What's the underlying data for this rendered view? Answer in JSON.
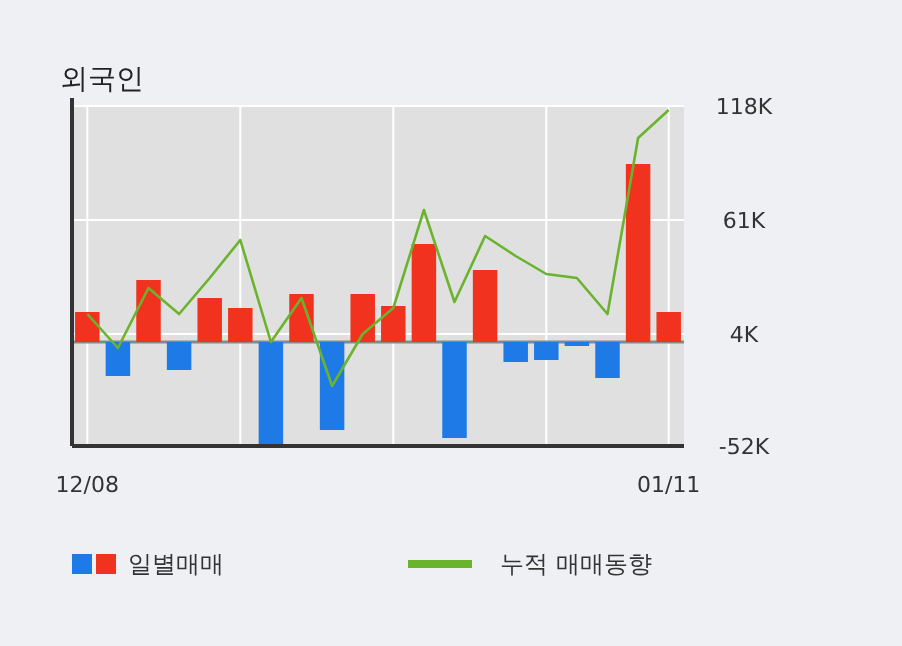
{
  "chart_data": {
    "type": "bar",
    "title": "외국인",
    "categories": [
      "12/08",
      null,
      null,
      null,
      null,
      null,
      null,
      null,
      null,
      null,
      null,
      null,
      null,
      null,
      null,
      null,
      null,
      null,
      null,
      "01/11"
    ],
    "series": [
      {
        "name": "일별매매",
        "colors": [
          "#f0321e",
          "#1e7ae6",
          "#f0321e",
          "#1e7ae6",
          "#f0321e",
          "#f0321e",
          "#1e7ae6",
          "#f0321e",
          "#1e7ae6",
          "#f0321e",
          "#f0321e",
          "#f0321e",
          "#1e7ae6",
          "#f0321e",
          "#1e7ae6",
          "#1e7ae6",
          "#1e7ae6",
          "#1e7ae6",
          "#f0321e",
          "#f0321e"
        ],
        "values": [
          15000,
          -17000,
          31000,
          -14000,
          22000,
          17000,
          -51000,
          24000,
          -44000,
          24000,
          18000,
          49000,
          -48000,
          36000,
          -10000,
          -9000,
          -2000,
          -18000,
          89000,
          15000
        ]
      },
      {
        "name": "누적 매매동향",
        "type": "line",
        "color": "#6ab42d",
        "values": [
          14000,
          -3000,
          27000,
          14000,
          32000,
          51000,
          0,
          22000,
          -22000,
          4000,
          17000,
          66000,
          20000,
          53000,
          43000,
          34000,
          32000,
          14000,
          102000,
          116000
        ]
      }
    ],
    "ylim": [
      -52000,
      118000
    ],
    "yticks": [
      {
        "value": 118000,
        "label": "118K"
      },
      {
        "value": 61000,
        "label": "61K"
      },
      {
        "value": 4000,
        "label": "4K"
      },
      {
        "value": -52000,
        "label": "-52K"
      }
    ],
    "grid": true,
    "legend": "bottom"
  }
}
